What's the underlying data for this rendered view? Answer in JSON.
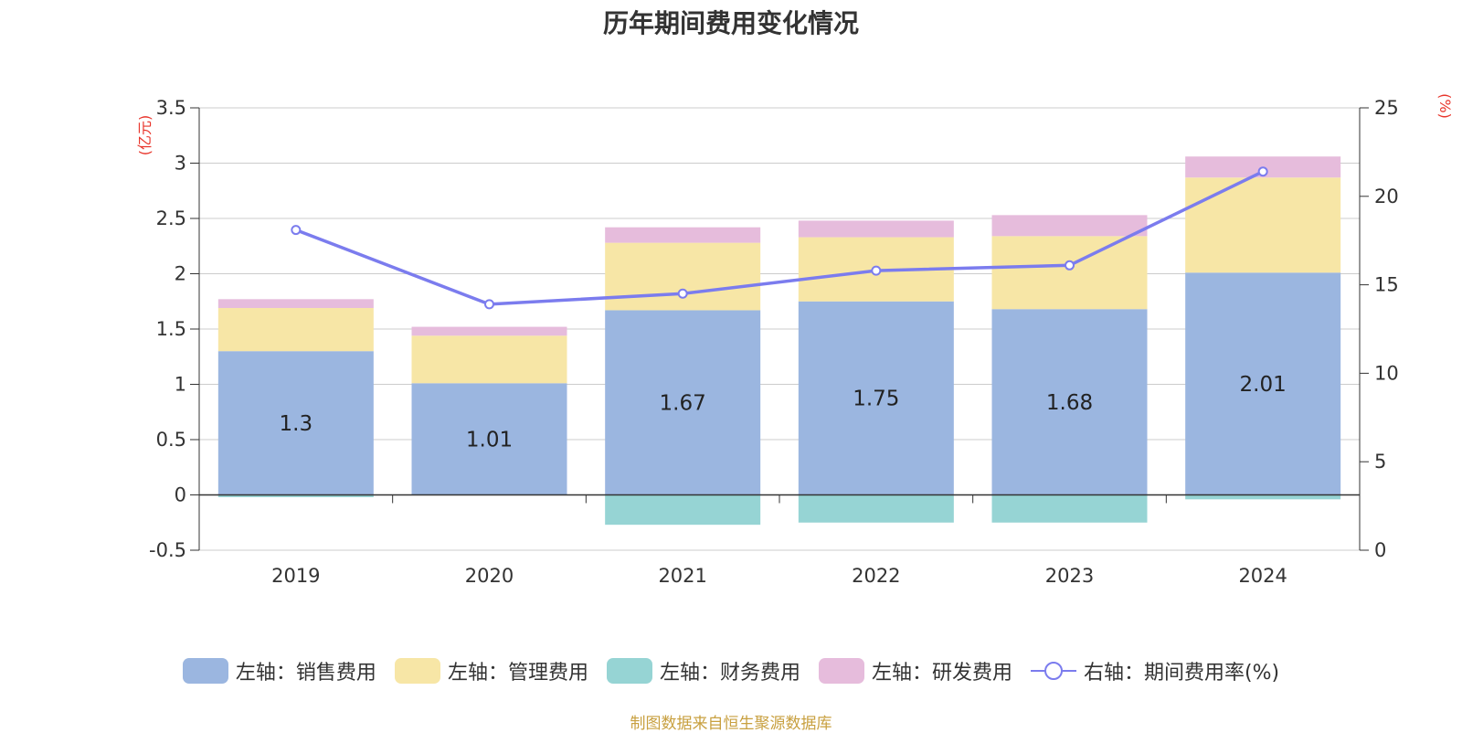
{
  "title": "历年期间费用变化情况",
  "source_note": "制图数据来自恒生聚源数据库",
  "colors": {
    "sales": "#9bb6e0",
    "mgmt": "#f7e6a6",
    "finance": "#96d4d4",
    "rd": "#e6bcdc",
    "rate_line": "#7b7cee",
    "unit_text": "#e8352b",
    "source_text": "#c8a040"
  },
  "legend": [
    {
      "label": "左轴：销售费用",
      "series": "sales",
      "kind": "swatch"
    },
    {
      "label": "左轴：管理费用",
      "series": "mgmt",
      "kind": "swatch"
    },
    {
      "label": "左轴：财务费用",
      "series": "finance",
      "kind": "swatch"
    },
    {
      "label": "左轴：研发费用",
      "series": "rd",
      "kind": "swatch"
    },
    {
      "label": "右轴：期间费用率(%)",
      "series": "rate",
      "kind": "line"
    }
  ],
  "chart_data": {
    "type": "bar",
    "stacked": true,
    "categories": [
      "2019",
      "2020",
      "2021",
      "2022",
      "2023",
      "2024"
    ],
    "left_axis": {
      "unit": "(亿元)",
      "ylim": [
        -0.5,
        3.5
      ],
      "ticks": [
        "3.5",
        "3",
        "2.5",
        "2",
        "1.5",
        "1",
        "0.5",
        "0",
        "-0.5"
      ]
    },
    "right_axis": {
      "unit": "(%)",
      "ylim": [
        0,
        25
      ],
      "ticks": [
        "25",
        "20",
        "15",
        "10",
        "5",
        "0"
      ]
    },
    "series": [
      {
        "key": "sales",
        "name": "左轴：销售费用",
        "axis": "left",
        "values": [
          1.3,
          1.01,
          1.67,
          1.75,
          1.68,
          2.01
        ],
        "labels": [
          "1.3",
          "1.01",
          "1.67",
          "1.75",
          "1.68",
          "2.01"
        ]
      },
      {
        "key": "mgmt",
        "name": "左轴：管理费用",
        "axis": "left",
        "values": [
          0.39,
          0.43,
          0.61,
          0.58,
          0.66,
          0.86
        ]
      },
      {
        "key": "finance",
        "name": "左轴：财务费用",
        "axis": "left",
        "values": [
          -0.02,
          0.0,
          -0.27,
          -0.25,
          -0.25,
          -0.04
        ]
      },
      {
        "key": "rd",
        "name": "左轴：研发费用",
        "axis": "left",
        "values": [
          0.08,
          0.08,
          0.14,
          0.15,
          0.19,
          0.19
        ]
      },
      {
        "key": "rate",
        "name": "右轴：期间费用率(%)",
        "axis": "right",
        "type": "line",
        "values": [
          18.1,
          13.9,
          14.5,
          15.8,
          16.1,
          21.4
        ]
      }
    ],
    "grid": true,
    "legend_position": "bottom"
  }
}
